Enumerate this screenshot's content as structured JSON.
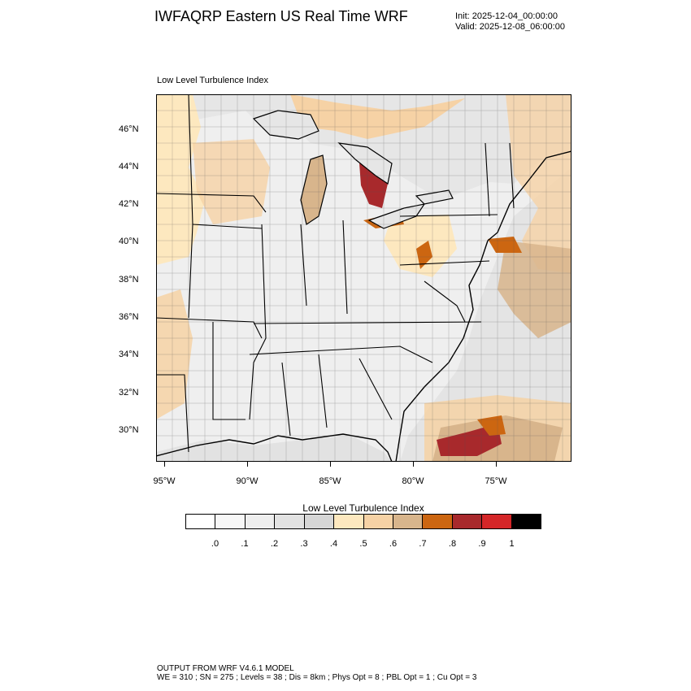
{
  "header": {
    "title": "IWFAQRP Eastern US Real Time WRF",
    "init": "Init: 2025-12-04_00:00:00",
    "valid": "Valid: 2025-12-08_06:00:00"
  },
  "map": {
    "field_label": "Low Level Turbulence Index",
    "lon_labels": [
      "95°W",
      "90°W",
      "85°W",
      "80°W",
      "75°W"
    ],
    "lat_labels": [
      "46°N",
      "44°N",
      "42°N",
      "40°N",
      "38°N",
      "36°N",
      "34°N",
      "32°N",
      "30°N"
    ],
    "colors": {
      "land_default": "#f0f0f0",
      "ocean_default": "#e9e9e9",
      "state_line": "#000000",
      "county_line": "#333333"
    }
  },
  "colorbar": {
    "title": "Low Level Turbulence Index",
    "colors": [
      "#ffffff",
      "#f7f7f7",
      "#eeeeee",
      "#e2e2e2",
      "#d6d6d6",
      "#fde8bf",
      "#f6d2a5",
      "#d8b58c",
      "#cc6611",
      "#a8292c",
      "#d42628",
      "#000000"
    ],
    "tick_labels": [
      ".0",
      ".1",
      ".2",
      ".3",
      ".4",
      ".5",
      ".6",
      ".7",
      ".8",
      ".9",
      "1"
    ]
  },
  "footer": {
    "line1": "OUTPUT FROM WRF V4.6.1 MODEL",
    "line2": "WE = 310 ; SN = 275 ; Levels = 38 ; Dis = 8km ; Phys Opt = 8 ; PBL Opt = 1 ; Cu Opt = 3"
  }
}
